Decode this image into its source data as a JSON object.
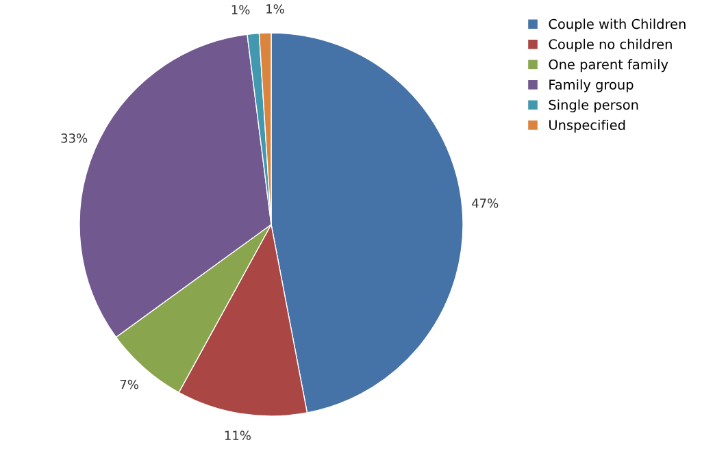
{
  "chart_data": {
    "type": "pie",
    "categories": [
      "Couple with Children",
      "Couple no children",
      "One parent family",
      "Family group",
      "Single person",
      "Unspecified"
    ],
    "values": [
      47,
      11,
      7,
      33,
      1,
      1
    ],
    "value_labels": [
      "47%",
      "11%",
      "7%",
      "33%",
      "1%",
      "1%"
    ],
    "colors": [
      "#4572a7",
      "#aa4643",
      "#89a54e",
      "#71588f",
      "#4198af",
      "#db843d"
    ],
    "legend": "top right"
  }
}
